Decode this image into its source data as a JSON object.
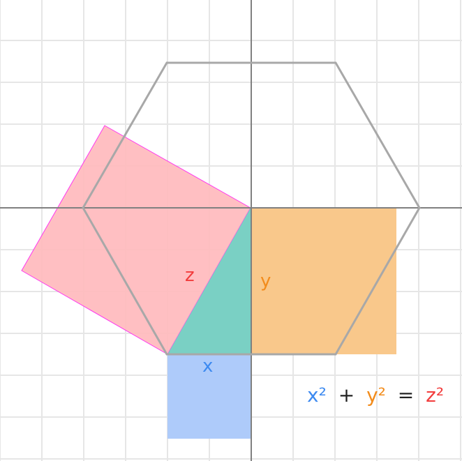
{
  "colors": {
    "background": "#ffffff",
    "grid": "#e6e6e6",
    "axis": "#808080",
    "hexagon": "#a8a8a8",
    "square_x": "#aecbfa",
    "square_y": "#f9c88b",
    "square_z": "#ffbcbf",
    "square_z_stroke": "#ff2cf0",
    "triangle": "#7ad0c4",
    "x_color": "#3d8af0",
    "y_color": "#f28c1c",
    "z_color": "#f23c3c",
    "text_dark": "#222222"
  },
  "labels": {
    "x": "x",
    "y": "y",
    "z": "z"
  },
  "equation": {
    "x_term": "x²",
    "plus": "+",
    "y_term": "y²",
    "equals": "=",
    "z_term": "z²"
  }
}
